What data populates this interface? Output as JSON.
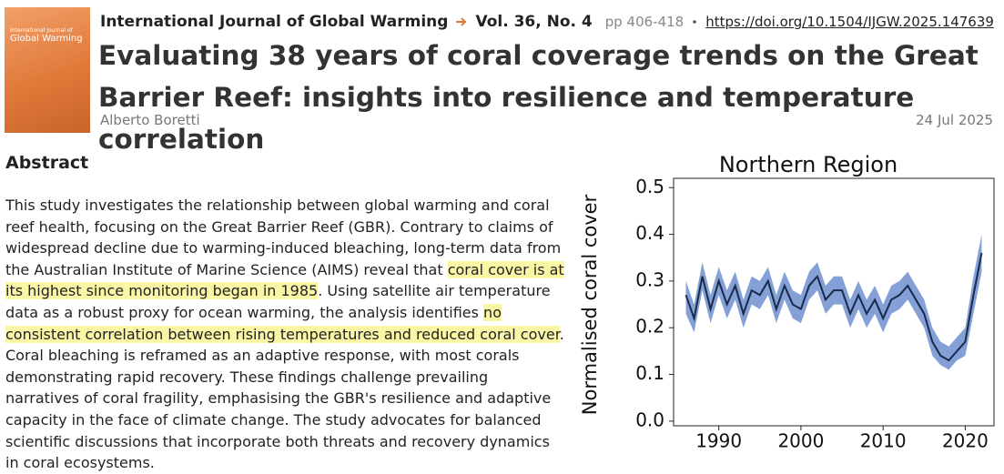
{
  "header": {
    "cover": {
      "line1": "International Journal of",
      "line2": "Global Warming"
    },
    "journal": "International Journal of Global Warming",
    "volume": "Vol. 36, No. 4",
    "pages": "pp 406-418",
    "doi": "https://doi.org/10.1504/IJGW.2025.147639",
    "title": "Evaluating 38 years of coral coverage trends on the Great Barrier Reef: insights into resilience and temperature correlation",
    "author": "Alberto Boretti",
    "date": "24 Jul 2025"
  },
  "abstract": {
    "heading": "Abstract",
    "segments": [
      {
        "text": "This study investigates the relationship between global warming and coral reef health, focusing on the Great Barrier Reef (GBR). Contrary to claims of widespread decline due to warming-induced bleaching, long-term data from the Australian Institute of Marine Science (AIMS) reveal that ",
        "highlight": false
      },
      {
        "text": "coral cover is at its highest since monitoring began in 1985",
        "highlight": true
      },
      {
        "text": ". Using satellite air temperature data as a robust proxy for ocean warming, the analysis identifies ",
        "highlight": false
      },
      {
        "text": "no consistent correlation between rising temperatures and reduced coral cover",
        "highlight": true
      },
      {
        "text": ". Coral bleaching is reframed as an adaptive response, with most corals demonstrating rapid recovery. These findings challenge prevailing narratives of coral fragility, emphasising the GBR's resilience and adaptive capacity in the face of climate change. The study advocates for balanced scientific discussions that incorporate both threats and recovery dynamics in coral ecosystems.",
        "highlight": false
      }
    ]
  },
  "chart_data": {
    "type": "line",
    "title": "Northern Region",
    "y_label": "Normalised coral cover",
    "x": [
      1986,
      1987,
      1988,
      1989,
      1990,
      1991,
      1992,
      1993,
      1994,
      1995,
      1996,
      1997,
      1998,
      1999,
      2000,
      2001,
      2002,
      2003,
      2004,
      2005,
      2006,
      2007,
      2008,
      2009,
      2010,
      2011,
      2012,
      2013,
      2014,
      2015,
      2016,
      2017,
      2018,
      2019,
      2020,
      2021,
      2022
    ],
    "series": [
      {
        "color": "#1a2a4a",
        "band_color": "#6f8fcf",
        "values": [
          0.27,
          0.22,
          0.31,
          0.24,
          0.3,
          0.25,
          0.29,
          0.23,
          0.28,
          0.27,
          0.3,
          0.24,
          0.29,
          0.25,
          0.24,
          0.29,
          0.31,
          0.26,
          0.28,
          0.28,
          0.23,
          0.27,
          0.23,
          0.26,
          0.22,
          0.26,
          0.27,
          0.29,
          0.26,
          0.23,
          0.17,
          0.14,
          0.13,
          0.15,
          0.17,
          0.27,
          0.36
        ],
        "lower": [
          0.23,
          0.19,
          0.28,
          0.21,
          0.27,
          0.22,
          0.26,
          0.2,
          0.25,
          0.24,
          0.27,
          0.21,
          0.26,
          0.22,
          0.21,
          0.26,
          0.28,
          0.23,
          0.25,
          0.25,
          0.2,
          0.24,
          0.2,
          0.23,
          0.19,
          0.23,
          0.24,
          0.26,
          0.23,
          0.2,
          0.14,
          0.12,
          0.11,
          0.13,
          0.14,
          0.23,
          0.32
        ],
        "upper": [
          0.3,
          0.25,
          0.34,
          0.27,
          0.33,
          0.28,
          0.32,
          0.26,
          0.31,
          0.3,
          0.33,
          0.27,
          0.32,
          0.28,
          0.27,
          0.32,
          0.34,
          0.29,
          0.31,
          0.31,
          0.26,
          0.3,
          0.26,
          0.29,
          0.25,
          0.29,
          0.3,
          0.32,
          0.29,
          0.26,
          0.2,
          0.17,
          0.16,
          0.18,
          0.2,
          0.31,
          0.4
        ]
      }
    ],
    "xlim": [
      1984.5,
      2023.5
    ],
    "ylim": [
      -0.01,
      0.52
    ],
    "xticks": [
      1990,
      2000,
      2010,
      2020
    ],
    "yticks": [
      {
        "value": 0,
        "label": "0.0"
      },
      0.1,
      0.2,
      0.3,
      0.4,
      0.5
    ]
  }
}
